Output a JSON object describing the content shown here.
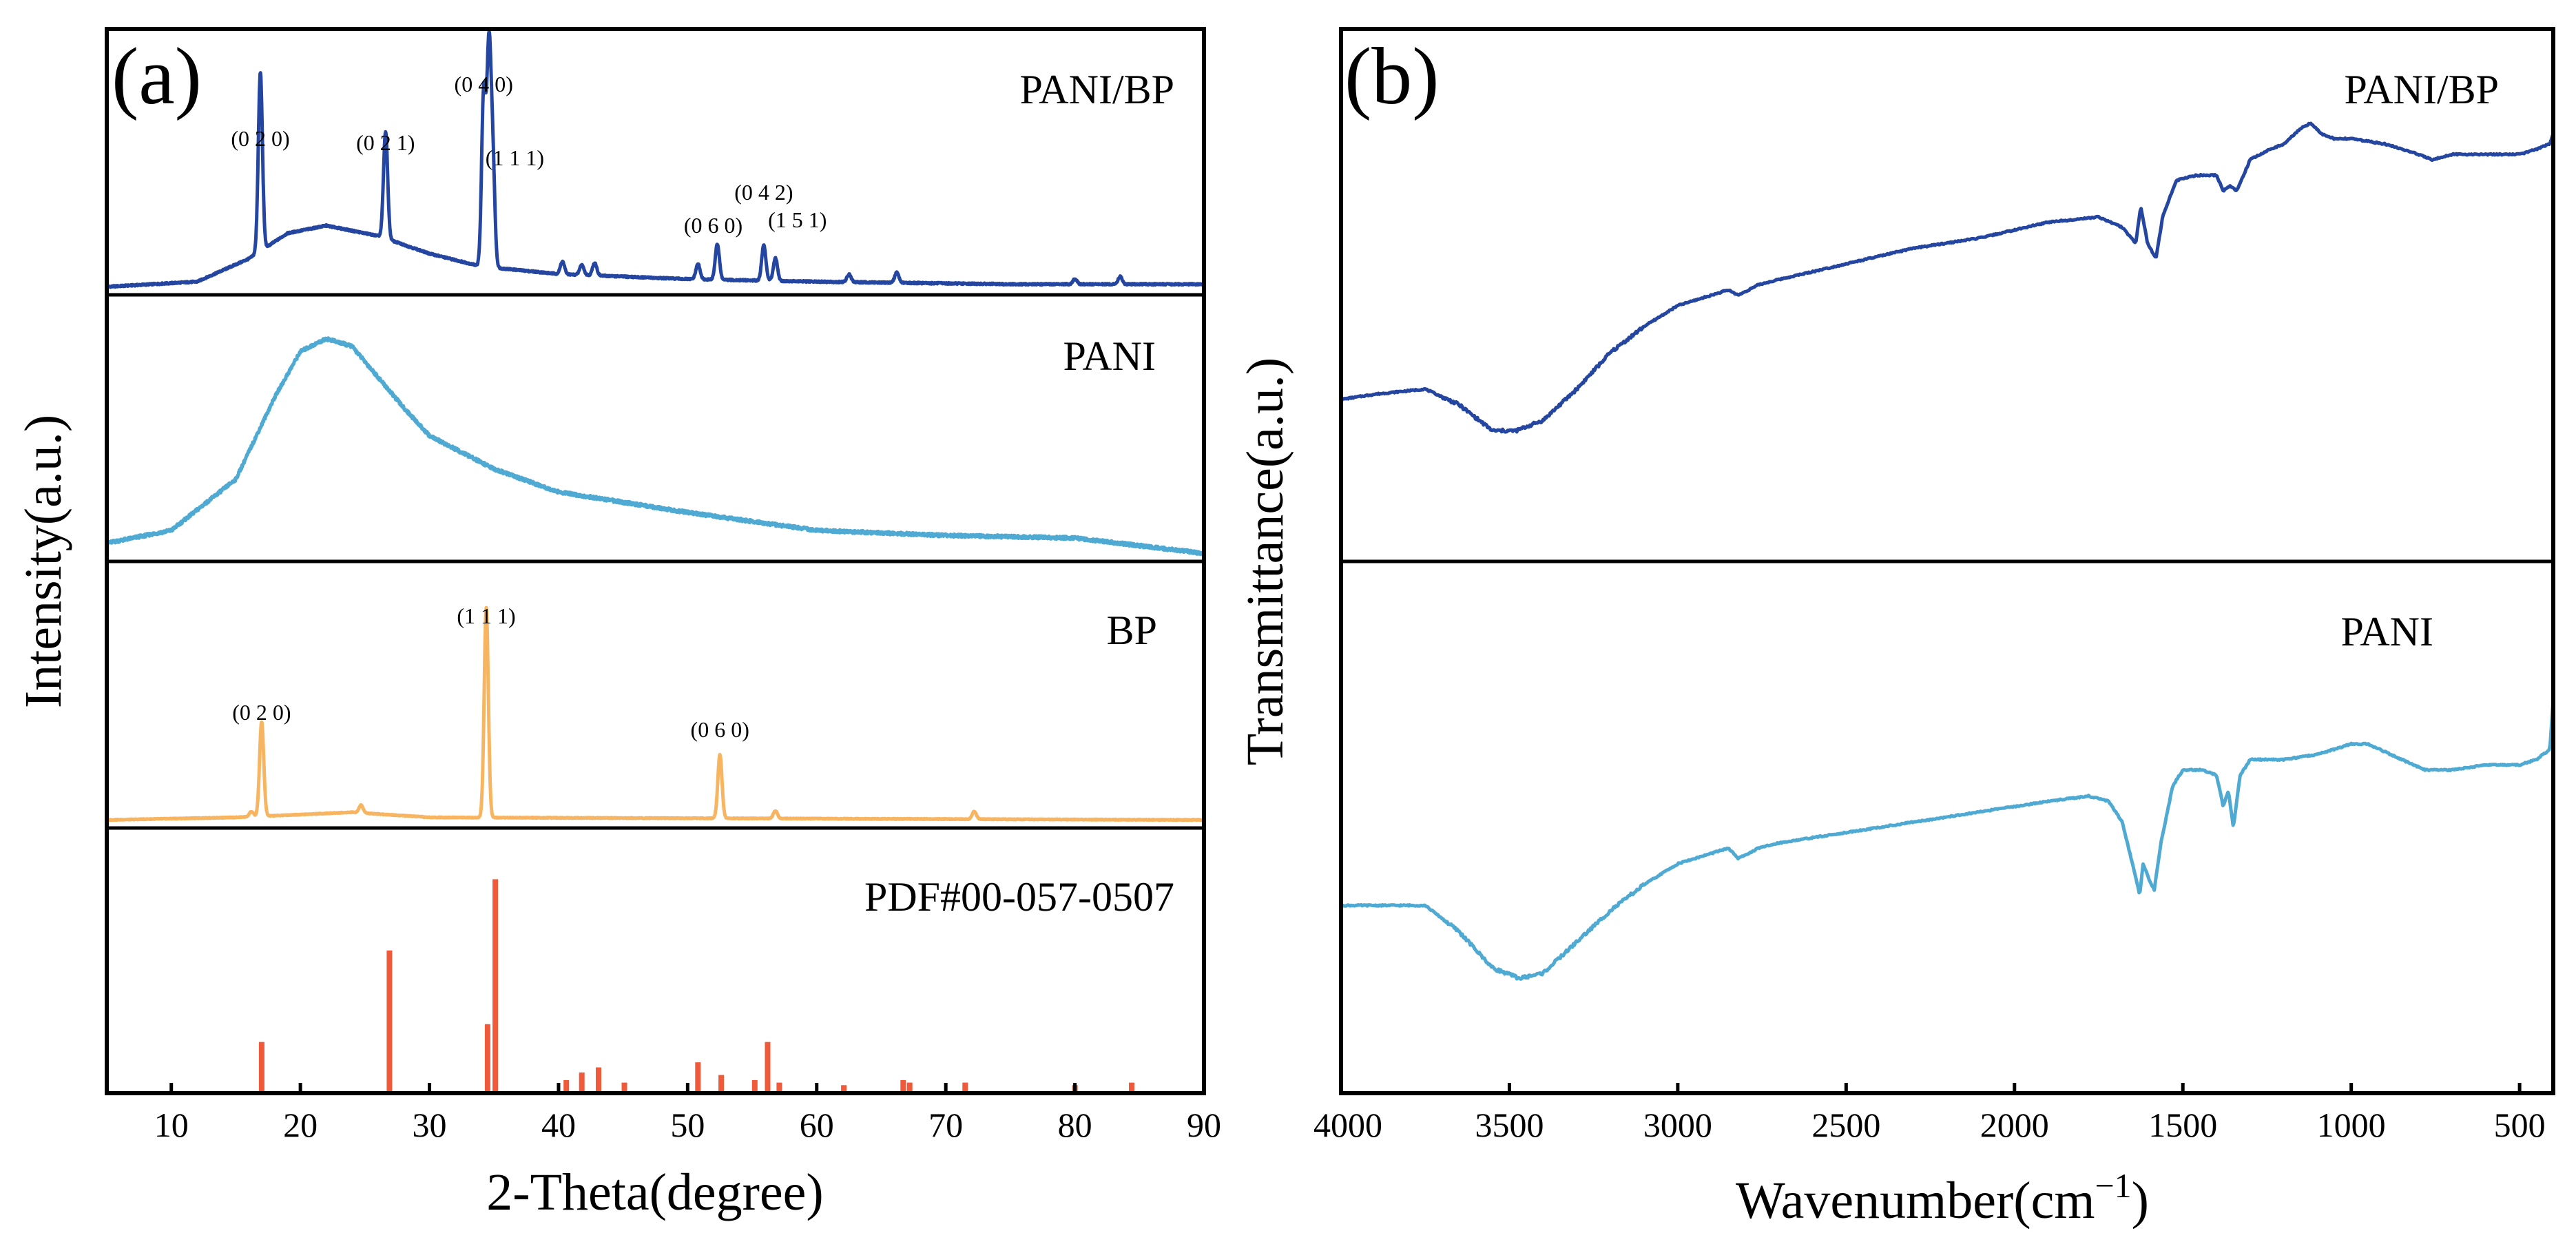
{
  "colors": {
    "pani_bp": "#2446a0",
    "pani": "#4ea9d3",
    "bp": "#f7b561",
    "pdf": "#f05a3a",
    "axis": "#000000"
  },
  "panel_a": {
    "label": "(a)",
    "xlabel": "2-Theta(degree)",
    "ylabel": "Intensity(a.u.)",
    "x_range": [
      5,
      90
    ],
    "x_ticks": [
      10,
      20,
      30,
      40,
      50,
      60,
      70,
      80,
      90
    ],
    "x_tick_labels": [
      "10",
      "20",
      "30",
      "40",
      "50",
      "60",
      "70",
      "80",
      "90"
    ],
    "sub_labels": {
      "pani_bp": "PANI/BP",
      "pani": "PANI",
      "bp": "BP",
      "pdf": "PDF#00-057-0507"
    },
    "hkl": {
      "pani_bp": [
        {
          "text": "(0 2 0)",
          "x": 16.9
        },
        {
          "text": "(0 2 1)",
          "x": 26.6
        },
        {
          "text": "(0 4 0)",
          "x": 34.2
        },
        {
          "text": "(1 1 1)",
          "x": 34.9
        },
        {
          "text": "(0 6 0)",
          "x": 52.3
        },
        {
          "text": "(0 4 2)",
          "x": 55.9
        },
        {
          "text": "(1 5 1)",
          "x": 56.8
        }
      ],
      "bp": [
        {
          "text": "(0 2 0)",
          "x": 17.0
        },
        {
          "text": "(1 1 1)",
          "x": 34.4
        },
        {
          "text": "(0 6 0)",
          "x": 52.5
        }
      ]
    }
  },
  "panel_b": {
    "label": "(b)",
    "xlabel": "Wavenumber(cm",
    "xlabel_sup": "−1",
    "xlabel_close": ")",
    "ylabel": "Transmittance(a.u.)",
    "x_range": [
      4000,
      400
    ],
    "x_ticks": [
      4000,
      3500,
      3000,
      2500,
      2000,
      1500,
      1000,
      500
    ],
    "x_tick_labels": [
      "4000",
      "3500",
      "3000",
      "2500",
      "2000",
      "1500",
      "1000",
      "500"
    ],
    "sub_labels": {
      "pani_bp": "PANI/BP",
      "pani": "PANI"
    }
  },
  "chart_data": [
    {
      "type": "line",
      "title": "(a)",
      "xlabel": "2-Theta(degree)",
      "ylabel": "Intensity(a.u.)",
      "xlim": [
        5,
        90
      ],
      "x_ticks": [
        10,
        20,
        30,
        40,
        50,
        60,
        70,
        80,
        90
      ],
      "grid": false,
      "series": [
        {
          "name": "PANI/BP",
          "background": [
            [
              5,
              0.01
            ],
            [
              12,
              0.03
            ],
            [
              16,
              0.12
            ],
            [
              19,
              0.22
            ],
            [
              22,
              0.25
            ],
            [
              26,
              0.21
            ],
            [
              30,
              0.14
            ],
            [
              34,
              0.09
            ],
            [
              40,
              0.06
            ],
            [
              50,
              0.04
            ],
            [
              60,
              0.03
            ],
            [
              75,
              0.02
            ],
            [
              90,
              0.02
            ]
          ],
          "peaks": [
            [
              16.9,
              0.7
            ],
            [
              26.6,
              0.42
            ],
            [
              34.2,
              0.68
            ],
            [
              34.6,
              0.82
            ],
            [
              34.9,
              0.42
            ],
            [
              40.3,
              0.05
            ],
            [
              41.8,
              0.04
            ],
            [
              42.8,
              0.05
            ],
            [
              50.8,
              0.06
            ],
            [
              52.3,
              0.14
            ],
            [
              55.9,
              0.14
            ],
            [
              56.8,
              0.09
            ],
            [
              62.5,
              0.03
            ],
            [
              66.2,
              0.04
            ],
            [
              80.0,
              0.02
            ],
            [
              83.5,
              0.03
            ]
          ]
        },
        {
          "name": "PANI",
          "background": [
            [
              5,
              0.05
            ],
            [
              10,
              0.1
            ],
            [
              15,
              0.3
            ],
            [
              18,
              0.62
            ],
            [
              20,
              0.8
            ],
            [
              22,
              0.85
            ],
            [
              24,
              0.82
            ],
            [
              26,
              0.7
            ],
            [
              28,
              0.58
            ],
            [
              30,
              0.47
            ],
            [
              35,
              0.34
            ],
            [
              40,
              0.25
            ],
            [
              50,
              0.17
            ],
            [
              60,
              0.1
            ],
            [
              70,
              0.08
            ],
            [
              80,
              0.07
            ],
            [
              90,
              0.01
            ]
          ],
          "peaks": []
        },
        {
          "name": "BP",
          "background": [
            [
              5,
              0.01
            ],
            [
              15,
              0.02
            ],
            [
              24,
              0.04
            ],
            [
              30,
              0.02
            ],
            [
              90,
              0.01
            ]
          ],
          "peaks": [
            [
              16.2,
              0.02
            ],
            [
              17.0,
              0.37
            ],
            [
              24.7,
              0.03
            ],
            [
              34.4,
              0.82
            ],
            [
              52.5,
              0.25
            ],
            [
              56.8,
              0.03
            ],
            [
              72.2,
              0.03
            ]
          ]
        },
        {
          "name": "PDF#00-057-0507",
          "sticks": [
            [
              17.0,
              0.18
            ],
            [
              26.9,
              0.54
            ],
            [
              34.5,
              0.25
            ],
            [
              35.1,
              0.82
            ],
            [
              40.6,
              0.03
            ],
            [
              41.8,
              0.06
            ],
            [
              43.1,
              0.08
            ],
            [
              45.1,
              0.02
            ],
            [
              50.8,
              0.1
            ],
            [
              52.6,
              0.05
            ],
            [
              55.2,
              0.03
            ],
            [
              56.2,
              0.18
            ],
            [
              57.1,
              0.02
            ],
            [
              62.1,
              0.01
            ],
            [
              66.7,
              0.03
            ],
            [
              67.2,
              0.02
            ],
            [
              71.5,
              0.02
            ],
            [
              80.0,
              0.01
            ],
            [
              84.4,
              0.02
            ]
          ]
        }
      ]
    },
    {
      "type": "line",
      "title": "(b)",
      "xlabel": "Wavenumber(cm−1)",
      "ylabel": "Transmittance(a.u.)",
      "xlim": [
        4000,
        400
      ],
      "x_ticks": [
        4000,
        3500,
        3000,
        2500,
        2000,
        1500,
        1000,
        500
      ],
      "grid": false,
      "series": [
        {
          "name": "PANI/BP",
          "points": [
            [
              4000,
              0.3
            ],
            [
              3900,
              0.31
            ],
            [
              3750,
              0.32
            ],
            [
              3650,
              0.29
            ],
            [
              3550,
              0.24
            ],
            [
              3480,
              0.24
            ],
            [
              3400,
              0.26
            ],
            [
              3300,
              0.32
            ],
            [
              3200,
              0.39
            ],
            [
              3100,
              0.44
            ],
            [
              3000,
              0.48
            ],
            [
              2900,
              0.5
            ],
            [
              2850,
              0.51
            ],
            [
              2820,
              0.5
            ],
            [
              2760,
              0.52
            ],
            [
              2700,
              0.53
            ],
            [
              2500,
              0.56
            ],
            [
              2300,
              0.59
            ],
            [
              2100,
              0.61
            ],
            [
              1900,
              0.64
            ],
            [
              1750,
              0.65
            ],
            [
              1680,
              0.63
            ],
            [
              1640,
              0.6
            ],
            [
              1625,
              0.67
            ],
            [
              1605,
              0.6
            ],
            [
              1580,
              0.57
            ],
            [
              1560,
              0.65
            ],
            [
              1520,
              0.72
            ],
            [
              1460,
              0.73
            ],
            [
              1400,
              0.73
            ],
            [
              1380,
              0.7
            ],
            [
              1360,
              0.71
            ],
            [
              1340,
              0.7
            ],
            [
              1300,
              0.76
            ],
            [
              1240,
              0.78
            ],
            [
              1200,
              0.79
            ],
            [
              1150,
              0.82
            ],
            [
              1120,
              0.83
            ],
            [
              1090,
              0.81
            ],
            [
              1050,
              0.8
            ],
            [
              1000,
              0.8
            ],
            [
              900,
              0.79
            ],
            [
              800,
              0.77
            ],
            [
              760,
              0.76
            ],
            [
              700,
              0.77
            ],
            [
              600,
              0.77
            ],
            [
              500,
              0.77
            ],
            [
              450,
              0.78
            ],
            [
              410,
              0.79
            ],
            [
              400,
              0.81
            ]
          ]
        },
        {
          "name": "PANI",
          "points": [
            [
              4000,
              0.35
            ],
            [
              3900,
              0.35
            ],
            [
              3750,
              0.35
            ],
            [
              3650,
              0.3
            ],
            [
              3550,
              0.23
            ],
            [
              3470,
              0.21
            ],
            [
              3400,
              0.22
            ],
            [
              3300,
              0.28
            ],
            [
              3200,
              0.34
            ],
            [
              3100,
              0.39
            ],
            [
              3000,
              0.43
            ],
            [
              2900,
              0.45
            ],
            [
              2850,
              0.46
            ],
            [
              2820,
              0.44
            ],
            [
              2760,
              0.46
            ],
            [
              2700,
              0.47
            ],
            [
              2500,
              0.49
            ],
            [
              2300,
              0.51
            ],
            [
              2100,
              0.53
            ],
            [
              1900,
              0.55
            ],
            [
              1780,
              0.56
            ],
            [
              1720,
              0.55
            ],
            [
              1680,
              0.51
            ],
            [
              1650,
              0.43
            ],
            [
              1628,
              0.37
            ],
            [
              1618,
              0.43
            ],
            [
              1600,
              0.4
            ],
            [
              1585,
              0.38
            ],
            [
              1565,
              0.47
            ],
            [
              1530,
              0.58
            ],
            [
              1500,
              0.61
            ],
            [
              1440,
              0.61
            ],
            [
              1400,
              0.6
            ],
            [
              1380,
              0.54
            ],
            [
              1365,
              0.57
            ],
            [
              1350,
              0.5
            ],
            [
              1330,
              0.6
            ],
            [
              1300,
              0.63
            ],
            [
              1200,
              0.63
            ],
            [
              1100,
              0.64
            ],
            [
              1000,
              0.66
            ],
            [
              950,
              0.66
            ],
            [
              850,
              0.63
            ],
            [
              780,
              0.61
            ],
            [
              760,
              0.61
            ],
            [
              700,
              0.61
            ],
            [
              600,
              0.62
            ],
            [
              500,
              0.62
            ],
            [
              450,
              0.63
            ],
            [
              410,
              0.65
            ],
            [
              400,
              0.75
            ]
          ]
        }
      ]
    }
  ]
}
